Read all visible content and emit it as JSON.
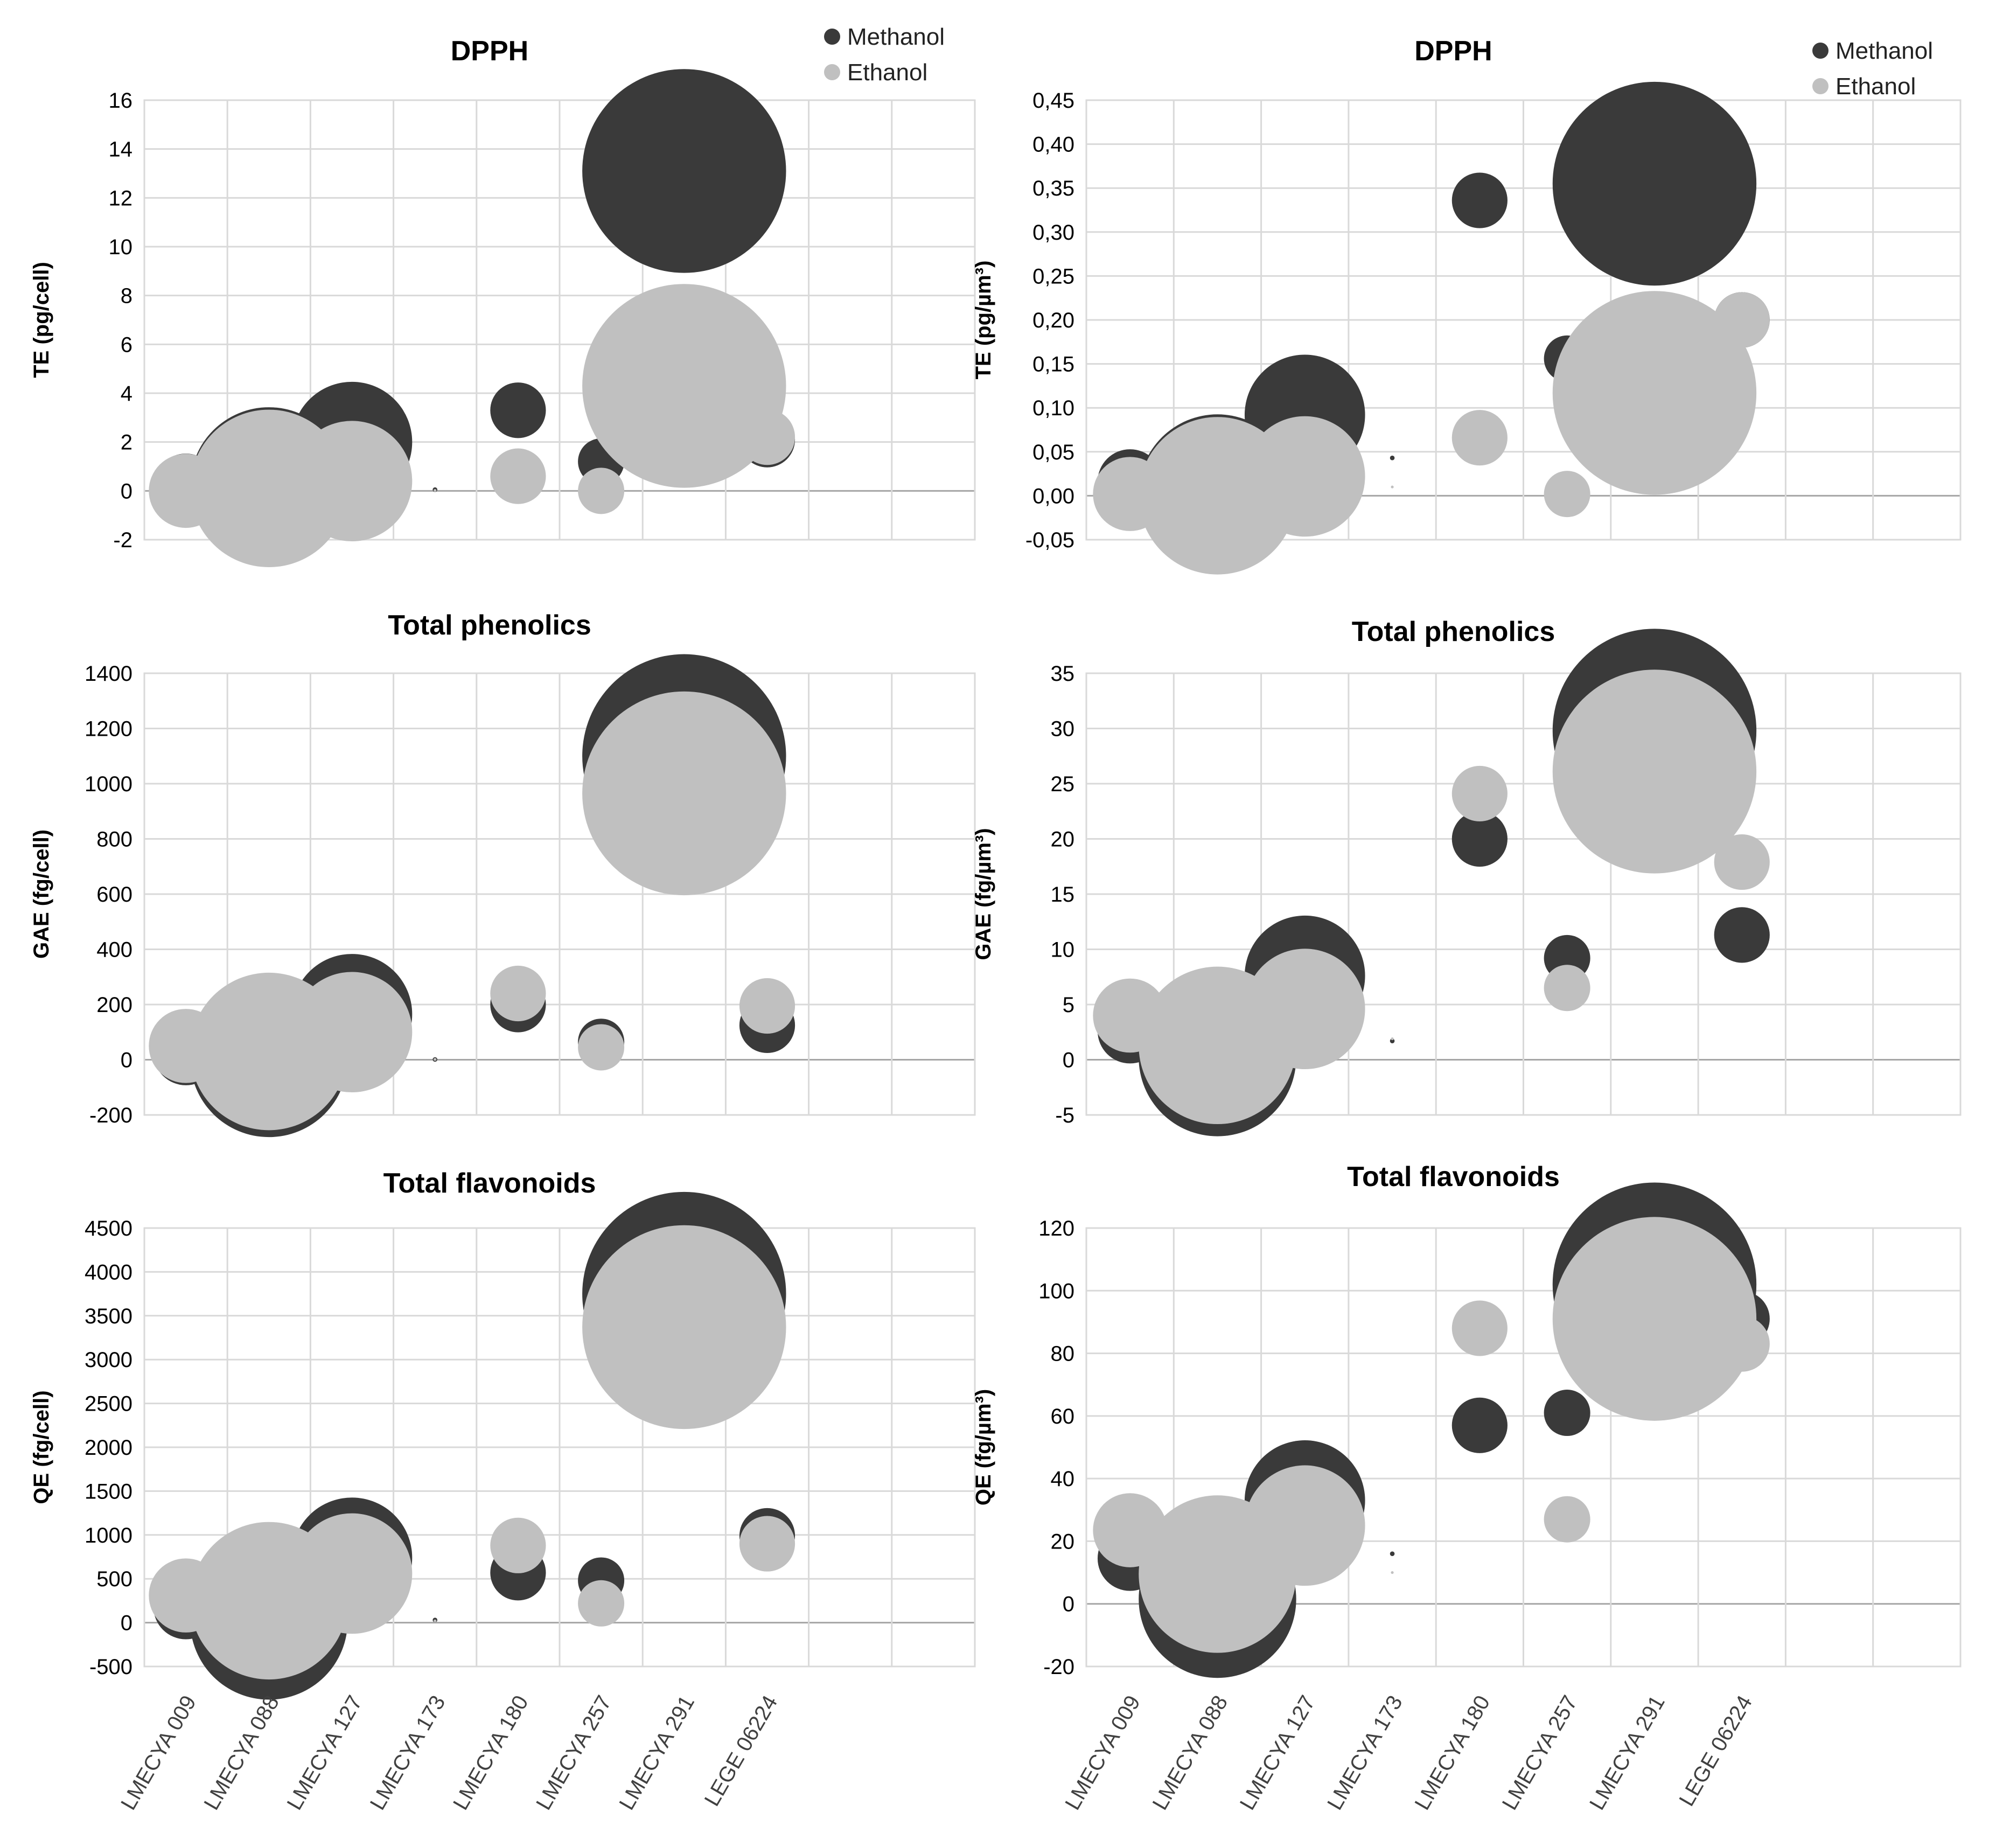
{
  "legend": {
    "series": [
      {
        "name": "Methanol",
        "color": "#3a3a3a"
      },
      {
        "name": "Ethanol",
        "color": "#c0c0c0"
      }
    ]
  },
  "categories": [
    "LMECYA 009",
    "LMECYA 088",
    "LMECYA 127",
    "LMECYA 173",
    "LMECYA 180",
    "LMECYA 257",
    "LMECYA 291",
    "LEGE 06224"
  ],
  "chart_data": [
    {
      "id": "dpph-cell",
      "type": "scatter",
      "title": "DPPH",
      "ylabel": "TE (pg/cell)",
      "ylim": [
        -2,
        16
      ],
      "yticks": [
        -2,
        0,
        2,
        4,
        6,
        8,
        10,
        12,
        14,
        16
      ],
      "ytick_labels": [
        "-2",
        "0",
        "2",
        "4",
        "6",
        "8",
        "10",
        "12",
        "14",
        "16"
      ],
      "show_legend": true,
      "show_categories": false,
      "categories": [
        "LMECYA 009",
        "LMECYA 088",
        "LMECYA 127",
        "LMECYA 173",
        "LMECYA 180",
        "LMECYA 257",
        "LMECYA 291",
        "LEGE 06224"
      ],
      "series": [
        {
          "name": "Methanol",
          "values": [
            0.2,
            0.2,
            2.0,
            0.05,
            3.3,
            1.2,
            13.1,
            2.1
          ],
          "bubble": [
            0.7,
            1.7,
            1.3,
            0.05,
            0.6,
            0.5,
            2.2,
            0.6
          ]
        },
        {
          "name": "Ethanol",
          "values": [
            0.0,
            0.1,
            0.4,
            0.02,
            0.6,
            0.0,
            4.3,
            2.2
          ],
          "bubble": [
            0.8,
            1.7,
            1.3,
            0.03,
            0.6,
            0.5,
            2.2,
            0.6
          ]
        }
      ]
    },
    {
      "id": "dpph-um3",
      "type": "scatter",
      "title": "DPPH",
      "ylabel": "TE (pg/µm³)",
      "ylim": [
        -0.05,
        0.45
      ],
      "yticks": [
        -0.05,
        0,
        0.05,
        0.1,
        0.15,
        0.2,
        0.25,
        0.3,
        0.35,
        0.4,
        0.45
      ],
      "ytick_labels": [
        "-0,05",
        "0,00",
        "0,05",
        "0,10",
        "0,15",
        "0,20",
        "0,25",
        "0,30",
        "0,35",
        "0,40",
        "0,45"
      ],
      "show_legend": true,
      "show_categories": false,
      "categories": [
        "LMECYA 009",
        "LMECYA 088",
        "LMECYA 127",
        "LMECYA 173",
        "LMECYA 180",
        "LMECYA 257",
        "LMECYA 291",
        "LEGE 06224"
      ],
      "series": [
        {
          "name": "Methanol",
          "values": [
            0.016,
            0.003,
            0.092,
            0.043,
            0.336,
            0.156,
            0.355,
            0.2
          ],
          "bubble": [
            0.7,
            1.7,
            1.3,
            0.05,
            0.6,
            0.5,
            2.2,
            0.6
          ]
        },
        {
          "name": "Ethanol",
          "values": [
            0.002,
            0.0,
            0.022,
            0.01,
            0.066,
            0.002,
            0.117,
            0.2
          ],
          "bubble": [
            0.8,
            1.7,
            1.3,
            0.03,
            0.6,
            0.5,
            2.2,
            0.6
          ]
        }
      ]
    },
    {
      "id": "phenolics-cell",
      "type": "scatter",
      "title": "Total phenolics",
      "ylabel": "GAE (fg/cell)",
      "ylim": [
        -200,
        1400
      ],
      "yticks": [
        -200,
        0,
        200,
        400,
        600,
        800,
        1000,
        1200,
        1400
      ],
      "ytick_labels": [
        "-200",
        "0",
        "200",
        "400",
        "600",
        "800",
        "1000",
        "1200",
        "1400"
      ],
      "show_legend": false,
      "show_categories": false,
      "categories": [
        "LMECYA 009",
        "LMECYA 088",
        "LMECYA 127",
        "LMECYA 173",
        "LMECYA 180",
        "LMECYA 257",
        "LMECYA 291",
        "LEGE 06224"
      ],
      "series": [
        {
          "name": "Methanol",
          "values": [
            25,
            5,
            165,
            1,
            200,
            65,
            1100,
            125
          ],
          "bubble": [
            0.7,
            1.7,
            1.3,
            0.05,
            0.6,
            0.5,
            2.2,
            0.6
          ]
        },
        {
          "name": "Ethanol",
          "values": [
            50,
            30,
            100,
            1,
            240,
            45,
            965,
            195
          ],
          "bubble": [
            0.8,
            1.7,
            1.3,
            0.03,
            0.6,
            0.5,
            2.2,
            0.6
          ]
        }
      ]
    },
    {
      "id": "phenolics-um3",
      "type": "scatter",
      "title": "Total phenolics",
      "ylabel": "GAE (fg/µm³)",
      "ylim": [
        -5,
        35
      ],
      "yticks": [
        -5,
        0,
        5,
        10,
        15,
        20,
        25,
        30,
        35
      ],
      "ytick_labels": [
        "-5",
        "0",
        "5",
        "10",
        "15",
        "20",
        "25",
        "30",
        "35"
      ],
      "show_legend": false,
      "show_categories": false,
      "categories": [
        "LMECYA 009",
        "LMECYA 088",
        "LMECYA 127",
        "LMECYA 173",
        "LMECYA 180",
        "LMECYA 257",
        "LMECYA 291",
        "LEGE 06224"
      ],
      "series": [
        {
          "name": "Methanol",
          "values": [
            2.6,
            0.2,
            7.6,
            1.7,
            20.0,
            9.2,
            29.8,
            11.3
          ],
          "bubble": [
            0.7,
            1.7,
            1.3,
            0.05,
            0.6,
            0.5,
            2.2,
            0.6
          ]
        },
        {
          "name": "Ethanol",
          "values": [
            4.0,
            1.3,
            4.6,
            1.9,
            24.1,
            6.5,
            26.1,
            17.9
          ],
          "bubble": [
            0.8,
            1.7,
            1.3,
            0.03,
            0.6,
            0.5,
            2.2,
            0.6
          ]
        }
      ]
    },
    {
      "id": "flavonoids-cell",
      "type": "scatter",
      "title": "Total flavonoids",
      "ylabel": "QE (fg/cell)",
      "ylim": [
        -500,
        4500
      ],
      "yticks": [
        -500,
        0,
        500,
        1000,
        1500,
        2000,
        2500,
        3000,
        3500,
        4000,
        4500
      ],
      "ytick_labels": [
        "-500",
        "0",
        "500",
        "1000",
        "1500",
        "2000",
        "2500",
        "3000",
        "3500",
        "4000",
        "4500"
      ],
      "show_legend": false,
      "show_categories": true,
      "categories": [
        "LMECYA 009",
        "LMECYA 088",
        "LMECYA 127",
        "LMECYA 173",
        "LMECYA 180",
        "LMECYA 257",
        "LMECYA 291",
        "LEGE 06224"
      ],
      "series": [
        {
          "name": "Methanol",
          "values": [
            180,
            20,
            740,
            30,
            570,
            480,
            3750,
            990
          ],
          "bubble": [
            0.7,
            1.7,
            1.3,
            0.05,
            0.6,
            0.5,
            2.2,
            0.6
          ]
        },
        {
          "name": "Ethanol",
          "values": [
            310,
            250,
            560,
            20,
            880,
            220,
            3370,
            900
          ],
          "bubble": [
            0.8,
            1.7,
            1.3,
            0.03,
            0.6,
            0.5,
            2.2,
            0.6
          ]
        }
      ]
    },
    {
      "id": "flavonoids-um3",
      "type": "scatter",
      "title": "Total flavonoids",
      "ylabel": "QE (fg/µm³)",
      "ylim": [
        -20,
        120
      ],
      "yticks": [
        -20,
        0,
        20,
        40,
        60,
        80,
        100,
        120
      ],
      "ytick_labels": [
        "-20",
        "0",
        "20",
        "40",
        "60",
        "80",
        "100",
        "120"
      ],
      "show_legend": false,
      "show_categories": true,
      "categories": [
        "LMECYA 009",
        "LMECYA 088",
        "LMECYA 127",
        "LMECYA 173",
        "LMECYA 180",
        "LMECYA 257",
        "LMECYA 291",
        "LEGE 06224"
      ],
      "series": [
        {
          "name": "Methanol",
          "values": [
            14.5,
            1.5,
            33.0,
            16.0,
            57.0,
            61.0,
            102.0,
            91.0
          ],
          "bubble": [
            0.7,
            1.7,
            1.3,
            0.05,
            0.6,
            0.5,
            2.2,
            0.6
          ]
        },
        {
          "name": "Ethanol",
          "values": [
            23.5,
            9.5,
            25.0,
            10.0,
            88.0,
            27.0,
            91.0,
            83.0
          ],
          "bubble": [
            0.8,
            1.7,
            1.3,
            0.03,
            0.6,
            0.5,
            2.2,
            0.6
          ]
        }
      ]
    }
  ]
}
